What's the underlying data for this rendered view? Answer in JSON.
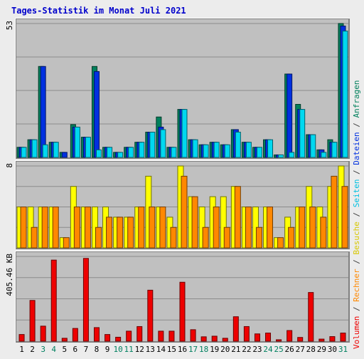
{
  "title": "Tages-Statistik im Monat Juli 2021",
  "colors": {
    "frame_bg": "#ececec",
    "plot_bg": "#c0c0c0",
    "grid": "#8c8c8c",
    "title": "#0000cc",
    "weekday_label": "#000000",
    "weekend_label": "#008060",
    "anfragen": "#00805c",
    "dateien": "#0030e0",
    "seiten": "#00d8f0",
    "besuche": "#ffff00",
    "rechner": "#ff8800",
    "volumen": "#ee0000"
  },
  "chart_data": {
    "type": "bar",
    "title": "Tages-Statistik im Monat Juli 2021",
    "x": [
      "1",
      "2",
      "3",
      "4",
      "5",
      "6",
      "7",
      "8",
      "9",
      "10",
      "11",
      "12",
      "13",
      "14",
      "15",
      "16",
      "17",
      "18",
      "19",
      "20",
      "21",
      "22",
      "23",
      "24",
      "25",
      "26",
      "27",
      "28",
      "29",
      "30",
      "31"
    ],
    "weekend_days": [
      "3",
      "4",
      "10",
      "11",
      "17",
      "18",
      "24",
      "25",
      "31"
    ],
    "panels": [
      {
        "id": "requests",
        "max_label": "53",
        "ylim": [
          0,
          53
        ],
        "grid": true,
        "series": [
          {
            "name": "Anfragen",
            "color": "#00805c",
            "values": [
              4,
              7,
              36,
              6,
              2,
              13,
              8,
              36,
              4,
              2,
              4,
              6,
              10,
              16,
              4,
              19,
              7,
              5,
              6,
              5,
              11,
              6,
              4,
              7,
              1,
              33,
              21,
              9,
              3,
              7,
              53
            ]
          },
          {
            "name": "Dateien",
            "color": "#0030e0",
            "values": [
              4,
              7,
              36,
              6,
              2,
              12,
              8,
              34,
              4,
              2,
              4,
              6,
              10,
              12,
              4,
              19,
              7,
              5,
              6,
              5,
              11,
              6,
              4,
              7,
              1,
              33,
              19,
              9,
              3,
              6,
              52
            ]
          },
          {
            "name": "Seiten",
            "color": "#00d8f0",
            "values": [
              4,
              7,
              5,
              6,
              0,
              12,
              8,
              3,
              4,
              2,
              4,
              6,
              10,
              11,
              4,
              19,
              7,
              5,
              6,
              5,
              10,
              6,
              4,
              7,
              1,
              2,
              19,
              9,
              2,
              6,
              50
            ]
          }
        ]
      },
      {
        "id": "visits",
        "max_label": "8",
        "ylim": [
          0,
          8
        ],
        "grid": true,
        "series": [
          {
            "name": "Besuche",
            "color": "#ffff00",
            "values": [
              4,
              4,
              4,
              4,
              1,
              6,
              4,
              4,
              4,
              3,
              3,
              4,
              7,
              4,
              3,
              8,
              5,
              4,
              5,
              5,
              6,
              4,
              4,
              4,
              1,
              3,
              4,
              6,
              4,
              6,
              8
            ]
          },
          {
            "name": "Rechner",
            "color": "#ff8800",
            "values": [
              4,
              2,
              4,
              4,
              1,
              4,
              4,
              2,
              3,
              3,
              3,
              4,
              4,
              4,
              2,
              7,
              5,
              2,
              4,
              2,
              6,
              4,
              2,
              4,
              1,
              2,
              4,
              4,
              3,
              7,
              6
            ]
          }
        ]
      },
      {
        "id": "volume",
        "max_label": "405.46 KB",
        "ylim": [
          0,
          405.46
        ],
        "grid": true,
        "series": [
          {
            "name": "Volumen",
            "color": "#ee0000",
            "values": [
              32,
              195,
              72,
              388,
              14,
              61,
              396,
              65,
              32,
              19,
              48,
              70,
              244,
              48,
              48,
              282,
              55,
              21,
              24,
              14,
              117,
              70,
              35,
              39,
              7,
              51,
              18,
              233,
              10,
              22,
              39
            ]
          }
        ]
      }
    ],
    "right_labels": [
      {
        "text": "Volumen",
        "color": "#ee0000"
      },
      {
        "text": "/",
        "color": "#404040"
      },
      {
        "text": "Rechner",
        "color": "#ff8800"
      },
      {
        "text": "/",
        "color": "#404040"
      },
      {
        "text": "Besuche",
        "color": "#d8c800"
      },
      {
        "text": "/",
        "color": "#404040"
      },
      {
        "text": "Seiten",
        "color": "#00c0e0"
      },
      {
        "text": "/",
        "color": "#404040"
      },
      {
        "text": "Dateien",
        "color": "#0030e0"
      },
      {
        "text": "/",
        "color": "#404040"
      },
      {
        "text": "Anfragen",
        "color": "#00805c"
      }
    ]
  }
}
